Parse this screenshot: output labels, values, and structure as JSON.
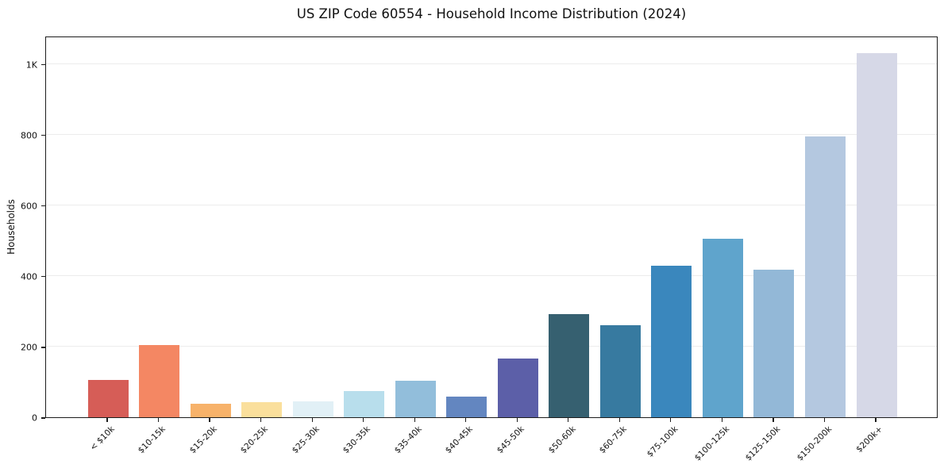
{
  "chart_data": {
    "type": "bar",
    "title": "US ZIP Code 60554 - Household Income Distribution (2024)",
    "xlabel": "",
    "ylabel": "Households",
    "categories": [
      "< $10k",
      "$10-15k",
      "$15-20k",
      "$20-25k",
      "$25-30k",
      "$30-35k",
      "$35-40k",
      "$40-45k",
      "$45-50k",
      "$50-60k",
      "$60-75k",
      "$75-100k",
      "$100-125k",
      "$125-150k",
      "$150-200k",
      "$200k+"
    ],
    "values": [
      105,
      205,
      38,
      43,
      45,
      74,
      104,
      58,
      166,
      293,
      261,
      428,
      505,
      417,
      795,
      1030
    ],
    "bar_colors": [
      "#d65d57",
      "#f48763",
      "#f7b26a",
      "#fadf9c",
      "#e1f0f6",
      "#b8deec",
      "#92bedb",
      "#6386c0",
      "#5c5fa8",
      "#366070",
      "#377aa0",
      "#3a87bd",
      "#5fa4cc",
      "#93b8d7",
      "#b4c8e0",
      "#d6d8e7"
    ],
    "ylim": [
      0,
      1080
    ],
    "yticks": [
      {
        "v": 0,
        "label": "0"
      },
      {
        "v": 200,
        "label": "200"
      },
      {
        "v": 400,
        "label": "400"
      },
      {
        "v": 600,
        "label": "600"
      },
      {
        "v": 800,
        "label": "800"
      },
      {
        "v": 1000,
        "label": "1K"
      }
    ],
    "grid": "horizontal",
    "legend_position": "none"
  },
  "style": {
    "background": "#ffffff",
    "spine_color": "#1d1d1d",
    "grid_color": "#ececec",
    "text_color": "#111111"
  }
}
